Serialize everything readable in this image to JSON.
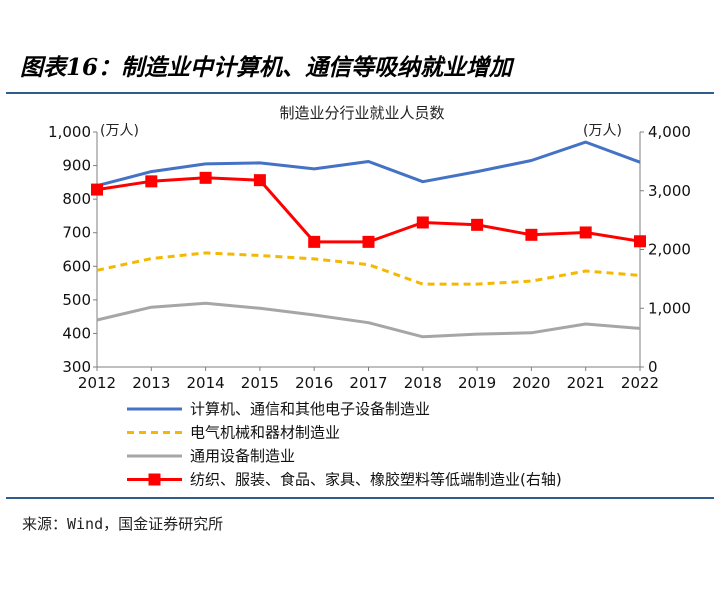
{
  "figure": {
    "title": "图表16：制造业中计算机、通信等吸纳就业增加",
    "source": "来源：Wind，国金证券研究所"
  },
  "chart_data": {
    "type": "line",
    "title": "制造业分行业就业人员数",
    "left_unit": "(万人)",
    "right_unit": "(万人)",
    "x": [
      "2012",
      "2013",
      "2014",
      "2015",
      "2016",
      "2017",
      "2018",
      "2019",
      "2020",
      "2021",
      "2022"
    ],
    "left_axis": {
      "ylim": [
        300,
        1000
      ],
      "ticks": [
        300,
        400,
        500,
        600,
        700,
        800,
        900,
        1000
      ],
      "tick_labels": [
        "300",
        "400",
        "500",
        "600",
        "700",
        "800",
        "900",
        "1,000"
      ]
    },
    "right_axis": {
      "ylim": [
        0,
        4000
      ],
      "ticks": [
        0,
        1000,
        2000,
        3000,
        4000
      ],
      "tick_labels": [
        "0",
        "1,000",
        "2,000",
        "3,000",
        "4,000"
      ]
    },
    "series": [
      {
        "name": "计算机、通信和其他电子设备制造业",
        "axis": "left",
        "style": "solid",
        "color": "#4472c4",
        "marker": "none",
        "values": [
          840,
          882,
          905,
          908,
          890,
          912,
          852,
          882,
          915,
          970,
          910
        ]
      },
      {
        "name": "电气机械和器材制造业",
        "axis": "left",
        "style": "dashed",
        "color": "#f5b800",
        "marker": "none",
        "values": [
          588,
          623,
          640,
          632,
          622,
          605,
          547,
          547,
          556,
          586,
          573
        ]
      },
      {
        "name": "通用设备制造业",
        "axis": "left",
        "style": "solid",
        "color": "#a6a6a6",
        "marker": "none",
        "values": [
          440,
          478,
          490,
          475,
          455,
          432,
          390,
          398,
          402,
          428,
          415
        ]
      },
      {
        "name": "纺织、服装、食品、家具、橡胶塑料等低端制造业(右轴)",
        "axis": "right",
        "style": "solid",
        "color": "#ff0000",
        "marker": "square",
        "values": [
          3020,
          3160,
          3220,
          3180,
          2130,
          2130,
          2460,
          2420,
          2250,
          2290,
          2140
        ]
      }
    ]
  }
}
